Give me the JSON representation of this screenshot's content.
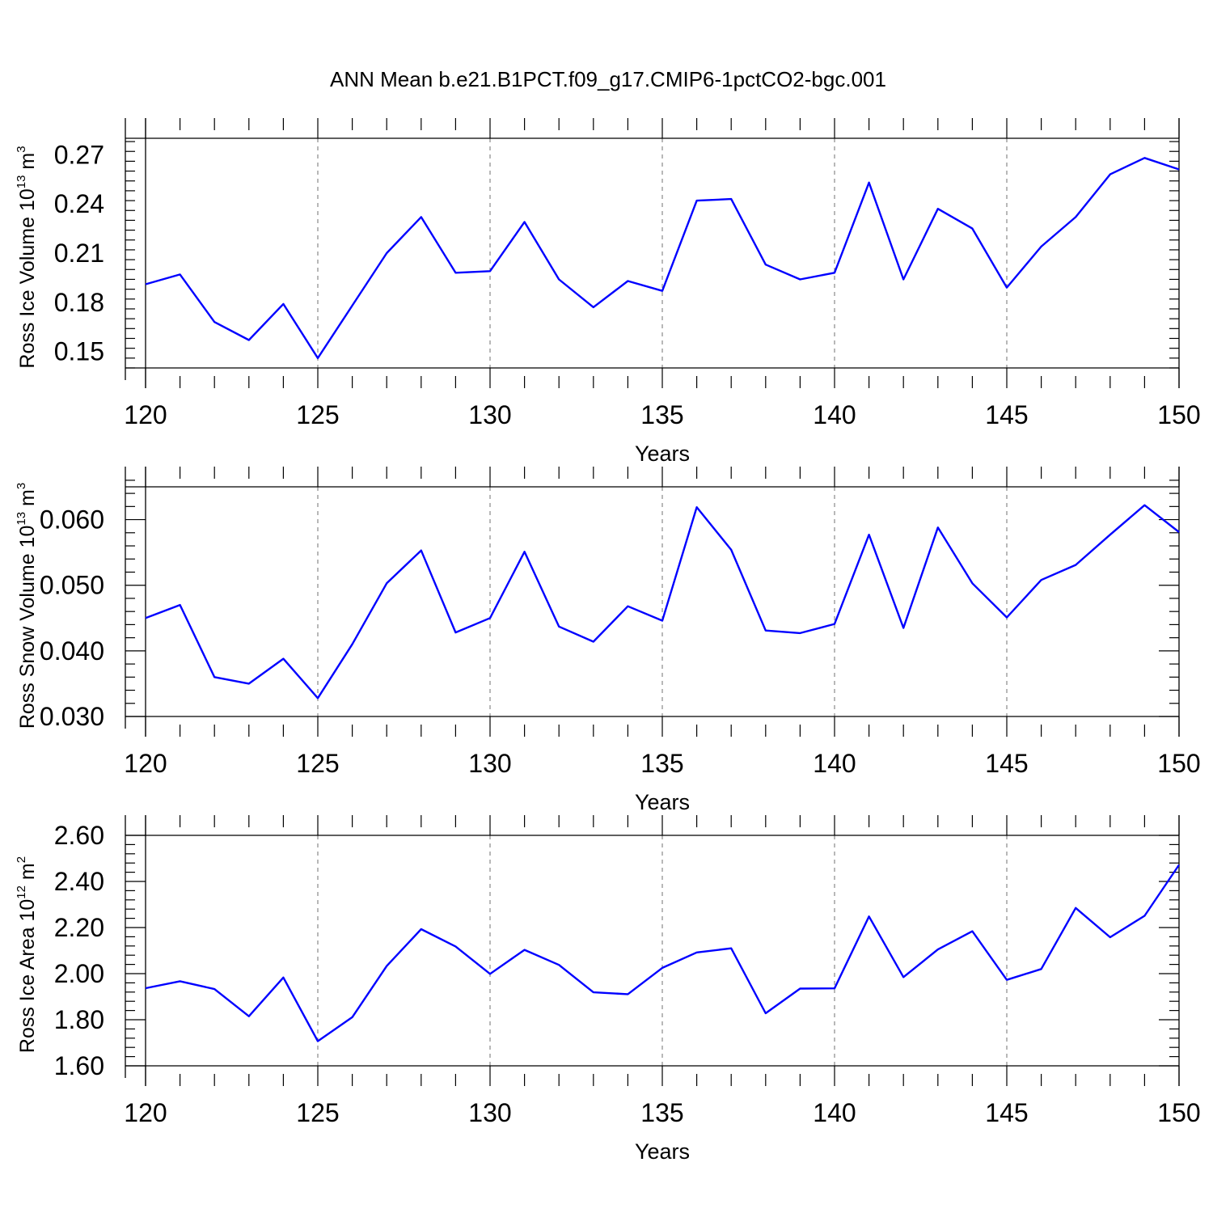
{
  "title": "ANN Mean b.e21.B1PCT.f09_g17.CMIP6-1pctCO2-bgc.001",
  "line_color": "#0000ff",
  "chart_data": [
    {
      "type": "line",
      "xlabel": "Years",
      "ylabel": {
        "prefix": "Ross Ice Volume 10",
        "exponent": "13",
        "unit": " m",
        "unit_exp": "3"
      },
      "xlim": [
        120,
        150
      ],
      "ylim": [
        0.14,
        0.28
      ],
      "x_ticks": [
        120,
        125,
        130,
        135,
        140,
        145,
        150
      ],
      "x_tick_labels": [
        "120",
        "125",
        "130",
        "135",
        "140",
        "145",
        "150"
      ],
      "y_ticks": [
        0.15,
        0.18,
        0.21,
        0.24,
        0.27
      ],
      "y_tick_labels": [
        "0.15",
        "0.18",
        "0.21",
        "0.24",
        "0.27"
      ],
      "y_minor_step": 0.006,
      "grid": "dashed vertical at major x ticks",
      "x": [
        120,
        121,
        122,
        123,
        124,
        125,
        126,
        127,
        128,
        129,
        130,
        131,
        132,
        133,
        134,
        135,
        136,
        137,
        138,
        139,
        140,
        141,
        142,
        143,
        144,
        145,
        146,
        147,
        148,
        149,
        150
      ],
      "values": [
        0.191,
        0.197,
        0.168,
        0.157,
        0.179,
        0.146,
        0.178,
        0.21,
        0.232,
        0.198,
        0.199,
        0.229,
        0.194,
        0.177,
        0.193,
        0.187,
        0.242,
        0.243,
        0.203,
        0.194,
        0.198,
        0.253,
        0.194,
        0.237,
        0.225,
        0.189,
        0.214,
        0.232,
        0.258,
        0.268,
        0.261
      ]
    },
    {
      "type": "line",
      "xlabel": "Years",
      "ylabel": {
        "prefix": "Ross Snow Volume 10",
        "exponent": "13",
        "unit": " m",
        "unit_exp": "3"
      },
      "xlim": [
        120,
        150
      ],
      "ylim": [
        0.03,
        0.065
      ],
      "x_ticks": [
        120,
        125,
        130,
        135,
        140,
        145,
        150
      ],
      "x_tick_labels": [
        "120",
        "125",
        "130",
        "135",
        "140",
        "145",
        "150"
      ],
      "y_ticks": [
        0.03,
        0.04,
        0.05,
        0.06
      ],
      "y_tick_labels": [
        "0.030",
        "0.040",
        "0.050",
        "0.060"
      ],
      "y_minor_step": 0.002,
      "grid": "dashed vertical at major x ticks",
      "x": [
        120,
        121,
        122,
        123,
        124,
        125,
        126,
        127,
        128,
        129,
        130,
        131,
        132,
        133,
        134,
        135,
        136,
        137,
        138,
        139,
        140,
        141,
        142,
        143,
        144,
        145,
        146,
        147,
        148,
        149,
        150
      ],
      "values": [
        0.045,
        0.047,
        0.036,
        0.035,
        0.0388,
        0.0328,
        0.041,
        0.0503,
        0.0553,
        0.0428,
        0.045,
        0.0551,
        0.0437,
        0.0414,
        0.0468,
        0.0446,
        0.0619,
        0.0554,
        0.0431,
        0.0427,
        0.0441,
        0.0577,
        0.0435,
        0.0588,
        0.0503,
        0.0451,
        0.0508,
        0.0531,
        0.0577,
        0.0622,
        0.0581
      ]
    },
    {
      "type": "line",
      "xlabel": "Years",
      "ylabel": {
        "prefix": "Ross Ice Area 10",
        "exponent": "12",
        "unit": " m",
        "unit_exp": "2"
      },
      "xlim": [
        120,
        150
      ],
      "ylim": [
        1.6,
        2.6
      ],
      "x_ticks": [
        120,
        125,
        130,
        135,
        140,
        145,
        150
      ],
      "x_tick_labels": [
        "120",
        "125",
        "130",
        "135",
        "140",
        "145",
        "150"
      ],
      "y_ticks": [
        1.6,
        1.8,
        2.0,
        2.2,
        2.4,
        2.6
      ],
      "y_tick_labels": [
        "1.60",
        "1.80",
        "2.00",
        "2.20",
        "2.40",
        "2.60"
      ],
      "y_minor_step": 0.04,
      "grid": "dashed vertical at major x ticks",
      "x": [
        120,
        121,
        122,
        123,
        124,
        125,
        126,
        127,
        128,
        129,
        130,
        131,
        132,
        133,
        134,
        135,
        136,
        137,
        138,
        139,
        140,
        141,
        142,
        143,
        144,
        145,
        146,
        147,
        148,
        149,
        150
      ],
      "values": [
        1.937,
        1.967,
        1.933,
        1.815,
        1.983,
        1.707,
        1.811,
        2.033,
        2.193,
        2.118,
        1.999,
        2.103,
        2.038,
        1.919,
        1.911,
        2.025,
        2.092,
        2.11,
        1.828,
        1.935,
        1.936,
        2.248,
        1.985,
        2.105,
        2.184,
        1.973,
        2.02,
        2.285,
        2.158,
        2.251,
        2.472
      ]
    }
  ]
}
